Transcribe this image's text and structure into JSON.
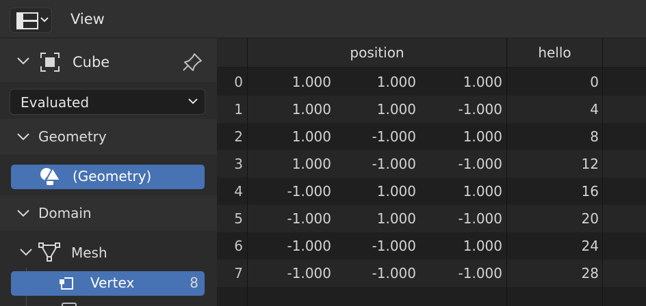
{
  "header": {
    "editor_type_icon": "spreadsheet-editor-icon",
    "menu_view": "View"
  },
  "sidebar": {
    "object_name": "Cube",
    "evaluation_mode": "Evaluated",
    "geometry_section": "Geometry",
    "geometry_item": "(Geometry)",
    "domain_section": "Domain",
    "mesh_label": "Mesh",
    "vertex_label": "Vertex",
    "vertex_count": "8"
  },
  "table": {
    "columns": [
      "position",
      "hello"
    ],
    "rows": [
      {
        "index": "0",
        "x": "1.000",
        "y": "1.000",
        "z": "1.000",
        "hello": "0"
      },
      {
        "index": "1",
        "x": "1.000",
        "y": "1.000",
        "z": "-1.000",
        "hello": "4"
      },
      {
        "index": "2",
        "x": "1.000",
        "y": "-1.000",
        "z": "1.000",
        "hello": "8"
      },
      {
        "index": "3",
        "x": "1.000",
        "y": "-1.000",
        "z": "-1.000",
        "hello": "12"
      },
      {
        "index": "4",
        "x": "-1.000",
        "y": "1.000",
        "z": "1.000",
        "hello": "16"
      },
      {
        "index": "5",
        "x": "-1.000",
        "y": "1.000",
        "z": "-1.000",
        "hello": "20"
      },
      {
        "index": "6",
        "x": "-1.000",
        "y": "-1.000",
        "z": "1.000",
        "hello": "24"
      },
      {
        "index": "7",
        "x": "-1.000",
        "y": "-1.000",
        "z": "-1.000",
        "hello": "28"
      }
    ]
  },
  "colors": {
    "selected": "#4772b3",
    "panel": "#2b2b2b",
    "header": "#303030"
  }
}
